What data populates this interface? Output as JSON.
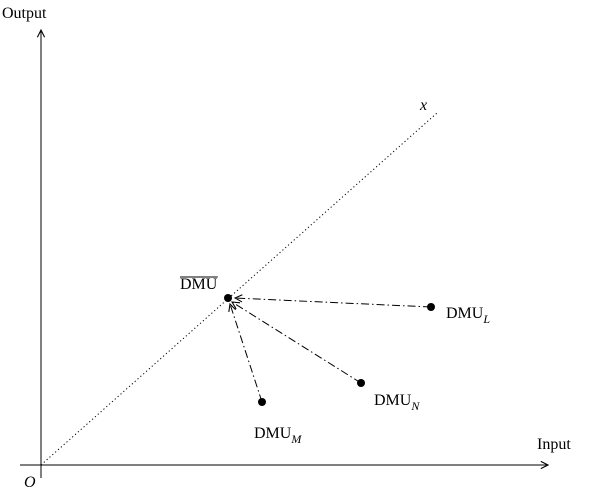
{
  "axes": {
    "y_label": "Output",
    "x_label": "Input",
    "origin_label": "O"
  },
  "ray": {
    "label": "x"
  },
  "points": {
    "dmu_bar": {
      "label": "DMU"
    },
    "dmu_l": {
      "label": "DMU",
      "sub": "L"
    },
    "dmu_n": {
      "label": "DMU",
      "sub": "N"
    },
    "dmu_m": {
      "label": "DMU",
      "sub": "M"
    }
  },
  "colors": {
    "ink": "#000000",
    "background": "#ffffff"
  }
}
